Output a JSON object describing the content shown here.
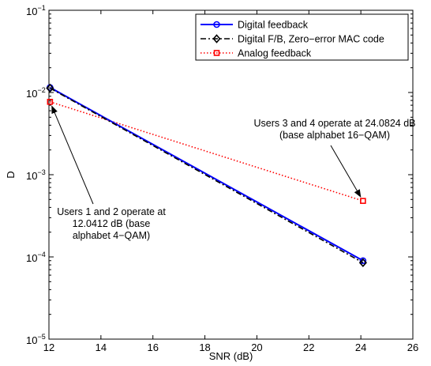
{
  "chart_data": {
    "type": "line",
    "xlabel": "SNR (dB)",
    "ylabel": "D",
    "xlim": [
      12,
      26
    ],
    "ylim": [
      1e-05,
      0.1
    ],
    "yscale": "log",
    "grid": false,
    "legend_position": "top-right",
    "x_ticks": [
      12,
      14,
      16,
      18,
      20,
      22,
      24,
      26
    ],
    "x_tick_labels": [
      "12",
      "14",
      "16",
      "18",
      "20",
      "22",
      "24",
      "26"
    ],
    "y_ticks": [
      1e-05,
      0.0001,
      0.001,
      0.01,
      0.1
    ],
    "y_tick_labels": [
      {
        "base": "10",
        "exp": "−5"
      },
      {
        "base": "10",
        "exp": "−4"
      },
      {
        "base": "10",
        "exp": "−3"
      },
      {
        "base": "10",
        "exp": "−2"
      },
      {
        "base": "10",
        "exp": "−1"
      }
    ],
    "series": [
      {
        "name": "Digital feedback",
        "x": [
          12.0412,
          24.0824
        ],
        "values": [
          0.0115,
          9e-05
        ],
        "color": "#0000ff",
        "dash": "solid",
        "marker": "circle"
      },
      {
        "name": "Digital F/B, Zero−error MAC code",
        "x": [
          12.0412,
          24.0824
        ],
        "values": [
          0.0113,
          8.5e-05
        ],
        "color": "#000000",
        "dash": "dashdot",
        "marker": "diamond"
      },
      {
        "name": "Analog feedback",
        "x": [
          12.0412,
          24.0824
        ],
        "values": [
          0.0077,
          0.00048
        ],
        "color": "#ff0000",
        "dash": "dotted",
        "marker": "square"
      }
    ],
    "annotations": [
      {
        "lines": [
          "Users 3 and 4 operate at 24.0824 dB",
          "(base alphabet 16−QAM)"
        ],
        "arrow_to": {
          "x": 24.0824,
          "y": 0.00048
        }
      },
      {
        "lines": [
          "Users 1 and 2 operate at",
          "12.0412 dB (base",
          "alphabet 4−QAM)"
        ],
        "arrow_to": {
          "x": 12.0412,
          "y": 0.0077
        }
      }
    ]
  }
}
